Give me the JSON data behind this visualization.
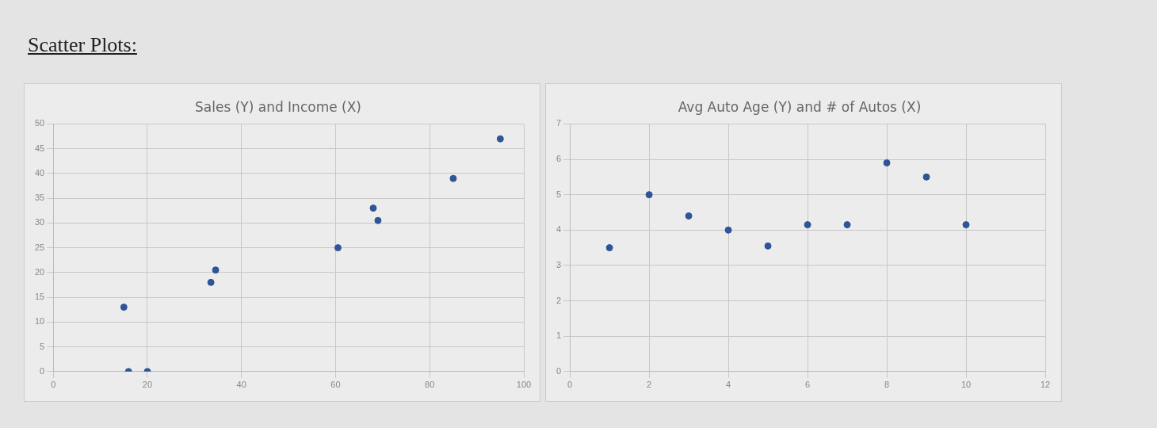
{
  "chart_data": [
    {
      "type": "scatter",
      "title": "Sales (Y) and Income (X)",
      "annotations": [
        "Scatter Plots:"
      ],
      "x": [
        16,
        20,
        15,
        33.5,
        34.5,
        60.5,
        68,
        69,
        85,
        95
      ],
      "values": [
        0,
        0,
        13,
        18,
        20.5,
        25,
        33,
        30.5,
        39,
        47
      ],
      "color": "#2e5597",
      "xlim": [
        0,
        100
      ],
      "xticks": [
        0,
        20,
        40,
        60,
        80,
        100
      ],
      "ylim": [
        0,
        50
      ],
      "yticks": [
        0,
        5,
        10,
        15,
        20,
        25,
        30,
        35,
        40,
        45,
        50
      ],
      "grid": true,
      "legend": false,
      "marker": "circle"
    },
    {
      "type": "scatter",
      "title": "Avg Auto Age (Y) and # of Autos (X)",
      "x": [
        1,
        2,
        3,
        4,
        5,
        6,
        7,
        8,
        9,
        10
      ],
      "values": [
        3.5,
        5,
        4.4,
        4,
        3.55,
        4.15,
        4.15,
        5.9,
        5.5,
        4.15
      ],
      "color": "#2e5597",
      "xlim": [
        0,
        12
      ],
      "xticks": [
        0,
        2,
        4,
        6,
        8,
        10,
        12
      ],
      "ylim": [
        0,
        7
      ],
      "yticks": [
        0,
        1,
        2,
        3,
        4,
        5,
        6,
        7
      ],
      "grid": true,
      "legend": false,
      "marker": "circle"
    }
  ]
}
